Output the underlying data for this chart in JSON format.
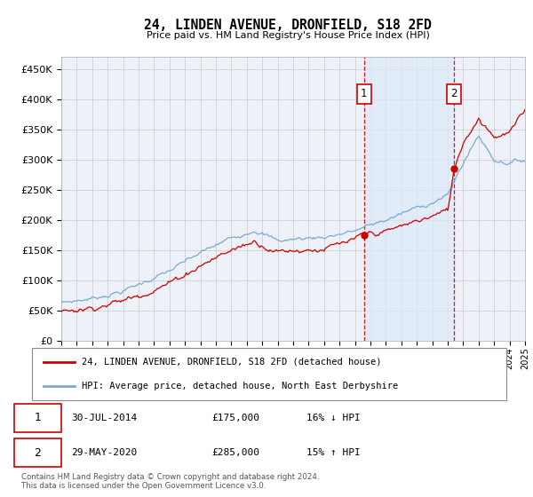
{
  "title": "24, LINDEN AVENUE, DRONFIELD, S18 2FD",
  "subtitle": "Price paid vs. HM Land Registry's House Price Index (HPI)",
  "ylim": [
    0,
    470000
  ],
  "yticks": [
    0,
    50000,
    100000,
    150000,
    200000,
    250000,
    300000,
    350000,
    400000,
    450000
  ],
  "plot_bg": "#eef2f8",
  "grid_color": "#c8c8c8",
  "legend_label_red": "24, LINDEN AVENUE, DRONFIELD, S18 2FD (detached house)",
  "legend_label_blue": "HPI: Average price, detached house, North East Derbyshire",
  "annotation1_date": "30-JUL-2014",
  "annotation1_price": "£175,000",
  "annotation1_hpi": "16% ↓ HPI",
  "annotation2_date": "29-MAY-2020",
  "annotation2_price": "£285,000",
  "annotation2_hpi": "15% ↑ HPI",
  "footer": "Contains HM Land Registry data © Crown copyright and database right 2024.\nThis data is licensed under the Open Government Licence v3.0.",
  "red_color": "#cc0000",
  "blue_color": "#7aaad0",
  "blue_fill": "#ddeaf8",
  "sale1_x": 2014.583,
  "sale1_y": 175000,
  "sale2_x": 2020.416,
  "sale2_y": 285000,
  "xmin": 1995.0,
  "xmax": 2025.0
}
